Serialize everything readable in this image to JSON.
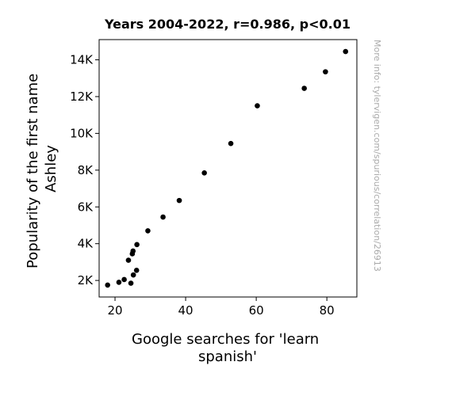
{
  "chart_data": {
    "type": "scatter",
    "title": "Years 2004-2022, r=0.986, p<0.01",
    "xlabel_lines": [
      "Google searches for 'learn",
      "spanish'"
    ],
    "ylabel_lines": [
      "Popularity of the first name",
      "Ashley"
    ],
    "watermark": "More info: tylervigen.com/spurious/correlation/26913",
    "xlim": [
      15.5,
      88.5
    ],
    "ylim": [
      1100,
      15100
    ],
    "x_ticks": [
      {
        "value": 20,
        "label": "20"
      },
      {
        "value": 40,
        "label": "40"
      },
      {
        "value": 60,
        "label": "60"
      },
      {
        "value": 80,
        "label": "80"
      }
    ],
    "y_ticks": [
      {
        "value": 2000,
        "label": "2K"
      },
      {
        "value": 4000,
        "label": "4K"
      },
      {
        "value": 6000,
        "label": "6K"
      },
      {
        "value": 8000,
        "label": "8K"
      },
      {
        "value": 10000,
        "label": "10K"
      },
      {
        "value": 12000,
        "label": "12K"
      },
      {
        "value": 14000,
        "label": "14K"
      }
    ],
    "grid": false,
    "marker_color": "#000000",
    "points": [
      {
        "x": 85.3,
        "y": 14450
      },
      {
        "x": 79.6,
        "y": 13350
      },
      {
        "x": 73.6,
        "y": 12450
      },
      {
        "x": 60.3,
        "y": 11500
      },
      {
        "x": 52.8,
        "y": 9450
      },
      {
        "x": 45.3,
        "y": 7850
      },
      {
        "x": 38.2,
        "y": 6350
      },
      {
        "x": 33.6,
        "y": 5450
      },
      {
        "x": 29.3,
        "y": 4700
      },
      {
        "x": 26.2,
        "y": 3950
      },
      {
        "x": 25.1,
        "y": 3600
      },
      {
        "x": 24.9,
        "y": 3450
      },
      {
        "x": 23.8,
        "y": 3100
      },
      {
        "x": 26.1,
        "y": 2550
      },
      {
        "x": 25.2,
        "y": 2300
      },
      {
        "x": 22.6,
        "y": 2050
      },
      {
        "x": 21.1,
        "y": 1900
      },
      {
        "x": 24.5,
        "y": 1850
      },
      {
        "x": 17.9,
        "y": 1750
      }
    ]
  }
}
